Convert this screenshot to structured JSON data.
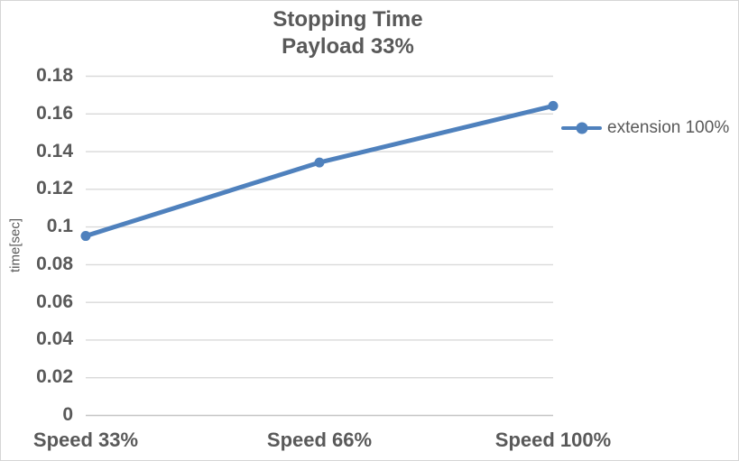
{
  "chart_data": {
    "type": "line",
    "title": "Stopping Time",
    "subtitle": "Payload 33%",
    "categories": [
      "Speed 33%",
      "Speed 66%",
      "Speed 100%"
    ],
    "series": [
      {
        "name": "extension 100%",
        "color": "#4F81BD",
        "values": [
          0.095,
          0.134,
          0.164
        ]
      }
    ],
    "xlabel": "",
    "ylabel": "time[sec]",
    "ylim": [
      0,
      0.18
    ],
    "y_ticks": [
      0,
      0.02,
      0.04,
      0.06,
      0.08,
      0.1,
      0.12,
      0.14,
      0.16,
      0.18
    ],
    "y_tick_labels": [
      "0",
      "0.02",
      "0.04",
      "0.06",
      "0.08",
      "0.1",
      "0.12",
      "0.14",
      "0.16",
      "0.18"
    ],
    "grid": true,
    "legend_position": "right"
  },
  "colors": {
    "background": "#FFFFFF",
    "border": "#D5D5D5",
    "grid": "#D9D9D9",
    "axis_line": "#C6C6C6",
    "text": "#595959",
    "series_blue": "#4F81BD"
  }
}
